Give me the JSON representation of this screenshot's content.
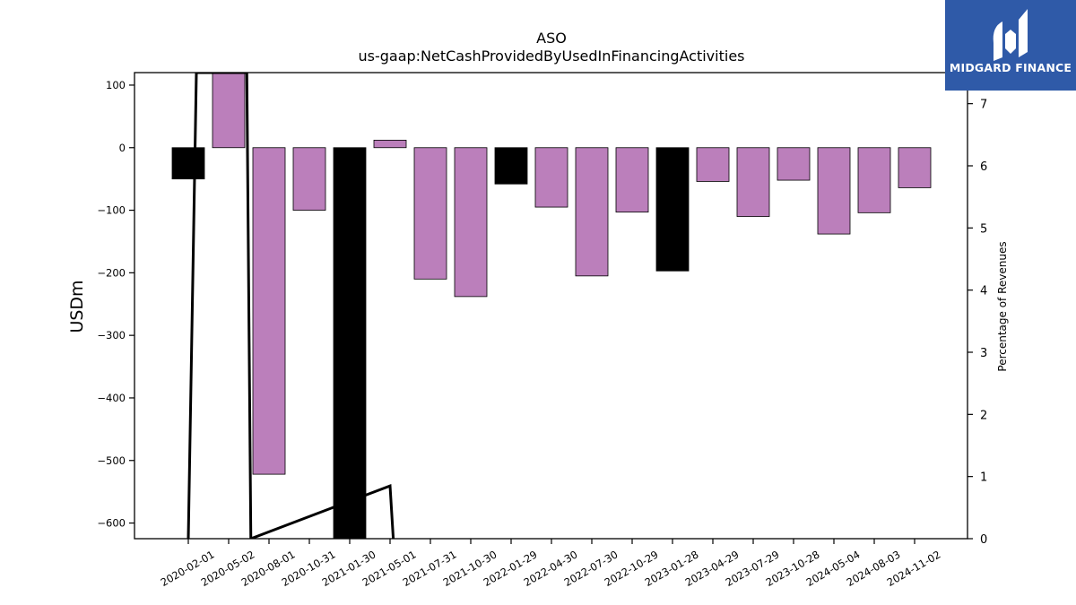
{
  "chart_data": {
    "type": "bar",
    "title": "ASO",
    "subtitle": "us-gaap:NetCashProvidedByUsedInFinancingActivities",
    "ylabel": "USDm",
    "ylabel_right": "Percentage of Revenues",
    "ylim": [
      -625,
      120
    ],
    "y2lim": [
      0,
      7.5
    ],
    "yticks": [
      100,
      0,
      -100,
      -200,
      -300,
      -400,
      -500,
      -600
    ],
    "ytick_labels": [
      "100",
      "0",
      "−100",
      "−200",
      "−300",
      "−400",
      "−500",
      "−600"
    ],
    "y2ticks": [
      0,
      1,
      2,
      3,
      4,
      5,
      6,
      7
    ],
    "categories": [
      "2020-02-01",
      "2020-05-02",
      "2020-08-01",
      "2020-10-31",
      "2021-01-30",
      "2021-05-01",
      "2021-07-31",
      "2021-10-30",
      "2022-01-29",
      "2022-04-30",
      "2022-07-30",
      "2022-10-29",
      "2023-01-28",
      "2023-04-29",
      "2023-07-29",
      "2023-10-28",
      "2024-05-04",
      "2024-08-03",
      "2024-11-02"
    ],
    "values": [
      -50,
      120,
      -522,
      -100,
      -650,
      12,
      -210,
      -238,
      -58,
      -95,
      -205,
      -103,
      -197,
      -54,
      -110,
      -52,
      -138,
      -104,
      -64
    ],
    "bar_colors": [
      "#000000",
      "#bb7fbb",
      "#bb7fbb",
      "#bb7fbb",
      "#000000",
      "#bb7fbb",
      "#bb7fbb",
      "#bb7fbb",
      "#000000",
      "#bb7fbb",
      "#bb7fbb",
      "#bb7fbb",
      "#000000",
      "#bb7fbb",
      "#bb7fbb",
      "#bb7fbb",
      "#bb7fbb",
      "#bb7fbb",
      "#bb7fbb"
    ],
    "pct_line": [
      {
        "x": 0,
        "y": 0
      },
      {
        "x": 0.2,
        "y": 7.5
      },
      {
        "x": 1.45,
        "y": 7.5
      },
      {
        "x": 1.55,
        "y": 0
      },
      {
        "x": 5,
        "y": 0.85
      },
      {
        "x": 5.08,
        "y": 0
      }
    ],
    "grid": false,
    "legend": "none"
  },
  "logo": {
    "text": "MIDGARD FINANCE"
  }
}
